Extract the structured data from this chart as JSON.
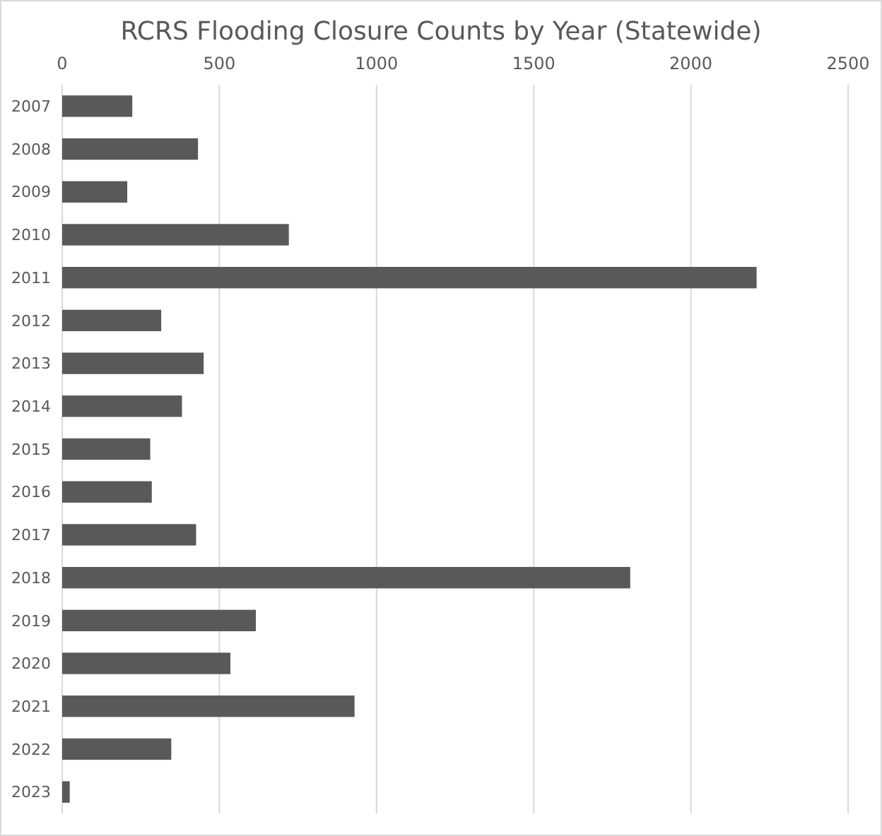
{
  "chart_data": {
    "type": "bar",
    "orientation": "horizontal",
    "title": "RCRS Flooding Closure Counts by Year (Statewide)",
    "categories": [
      "2007",
      "2008",
      "2009",
      "2010",
      "2011",
      "2012",
      "2013",
      "2014",
      "2015",
      "2016",
      "2017",
      "2018",
      "2019",
      "2020",
      "2021",
      "2022",
      "2023"
    ],
    "values": [
      223,
      432,
      207,
      721,
      2209,
      315,
      450,
      381,
      280,
      285,
      426,
      1807,
      616,
      535,
      930,
      347,
      24
    ],
    "color": "#595959",
    "xlim": [
      0,
      2500
    ],
    "xticks": [
      0,
      500,
      1000,
      1500,
      2000,
      2500
    ],
    "grid": "x"
  }
}
